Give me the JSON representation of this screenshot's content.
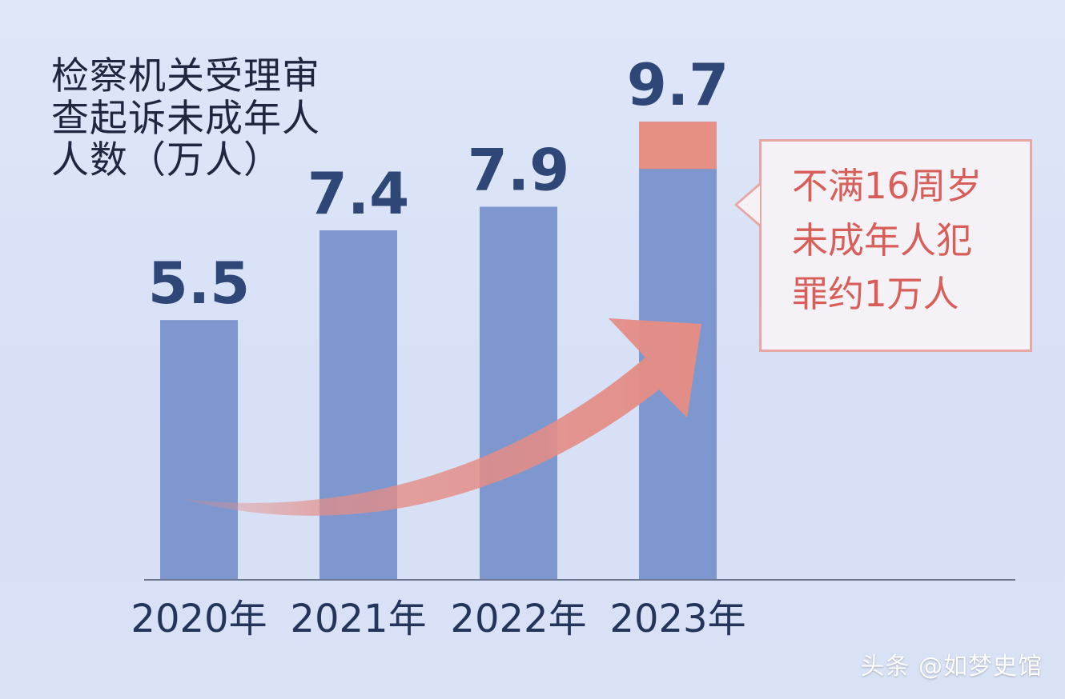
{
  "chart_data": {
    "type": "bar",
    "title_lines": [
      "检察机关受理审",
      "查起诉未成年人",
      "人数（万人）"
    ],
    "categories": [
      "2020年",
      "2021年",
      "2022年",
      "2023年"
    ],
    "values": [
      5.5,
      7.4,
      7.9,
      9.7
    ],
    "value_labels": [
      "5.5",
      "7.4",
      "7.9",
      "9.7"
    ],
    "highlight_segment": {
      "category": "2023年",
      "value": 1
    },
    "callout": {
      "text": "不满16周岁\n未成年人犯\n罪约1万人"
    },
    "ylim": [
      0,
      11.6
    ],
    "grid": false,
    "colors": {
      "bar": "#7e97cf",
      "highlight": "#e58f85",
      "arrow": "#e48d86",
      "value_label": "#2f4776",
      "axis_text": "#24345b"
    }
  },
  "watermark": "头条 @如梦史馆"
}
